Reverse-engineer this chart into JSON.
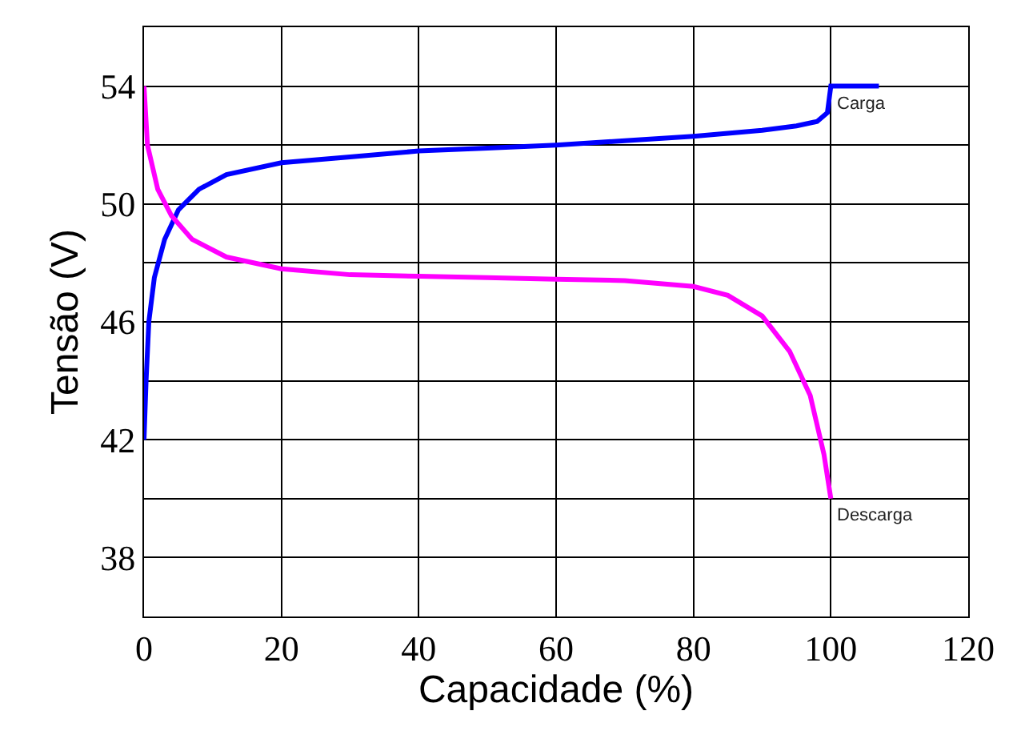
{
  "chart_data": {
    "type": "line",
    "xlabel": "Capacidade (%)",
    "ylabel": "Tensão (V)",
    "xlim": [
      0,
      120
    ],
    "xticks": [
      0,
      20,
      40,
      60,
      80,
      100,
      120
    ],
    "ylim": [
      36,
      56
    ],
    "yticks": [
      {
        "value": 36,
        "label": null
      },
      38,
      {
        "value": 40,
        "label": null
      },
      42,
      {
        "value": 44,
        "label": null
      },
      46,
      {
        "value": 48,
        "label": null
      },
      50,
      {
        "value": 52,
        "label": null
      },
      54,
      {
        "value": 56,
        "label": null
      }
    ],
    "grid": true,
    "marker": "none",
    "line_style": "solid",
    "series": [
      {
        "color": "#0000ff",
        "x": [
          0,
          0.3,
          0.7,
          1.5,
          3,
          5,
          8,
          12,
          20,
          30,
          40,
          50,
          60,
          70,
          80,
          90,
          95,
          98,
          99.5,
          100,
          107
        ],
        "values": [
          42,
          44,
          46,
          47.5,
          48.8,
          49.8,
          50.5,
          51,
          51.4,
          51.6,
          51.8,
          51.9,
          52,
          52.15,
          52.3,
          52.5,
          52.65,
          52.8,
          53.1,
          54,
          54
        ]
      },
      {
        "color": "#ff00ff",
        "x": [
          0,
          0.5,
          2,
          4,
          7,
          12,
          20,
          30,
          40,
          50,
          60,
          70,
          80,
          85,
          90,
          94,
          97,
          99,
          100
        ],
        "values": [
          54,
          52,
          50.5,
          49.6,
          48.8,
          48.2,
          47.8,
          47.6,
          47.55,
          47.5,
          47.45,
          47.4,
          47.2,
          46.9,
          46.2,
          45,
          43.5,
          41.5,
          40
        ]
      }
    ],
    "annotations": [
      {
        "text": "Carga",
        "x": 100,
        "y": 54
      },
      {
        "text": "Descarga",
        "x": 100,
        "y": 40
      }
    ]
  }
}
